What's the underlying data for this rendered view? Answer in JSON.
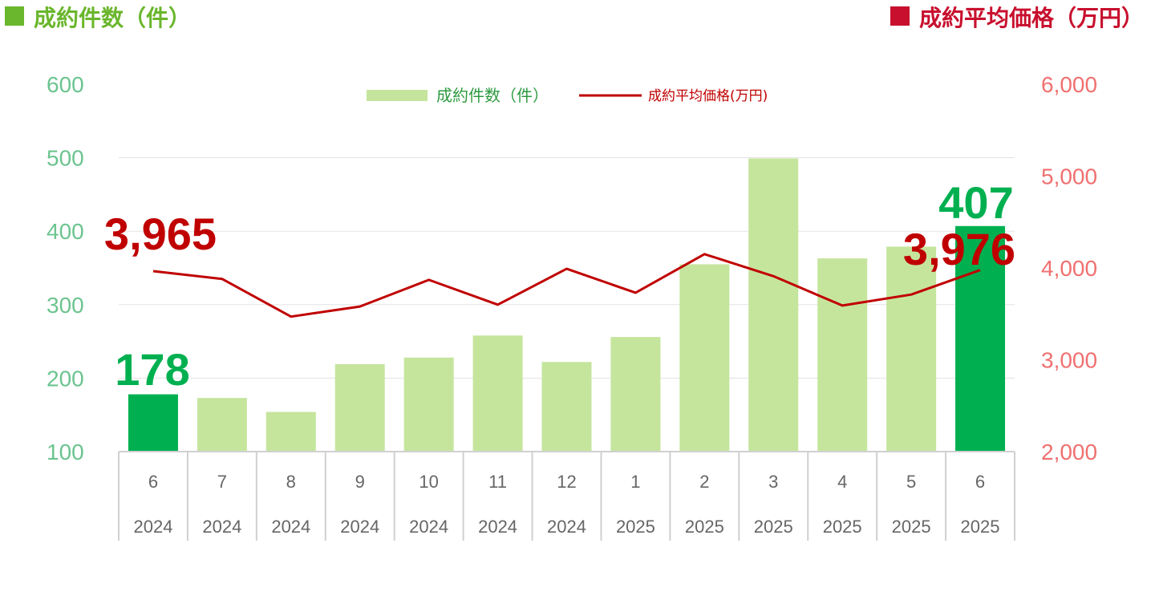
{
  "header": {
    "left_title": "成約件数（件）",
    "right_title": "成約平均価格（万円）",
    "left_color": "#6ab62c",
    "right_color": "#c8102e"
  },
  "chart_data": {
    "type": "bar+line",
    "categories": [
      {
        "month": "6",
        "year": "2024"
      },
      {
        "month": "7",
        "year": "2024"
      },
      {
        "month": "8",
        "year": "2024"
      },
      {
        "month": "9",
        "year": "2024"
      },
      {
        "month": "10",
        "year": "2024"
      },
      {
        "month": "11",
        "year": "2024"
      },
      {
        "month": "12",
        "year": "2024"
      },
      {
        "month": "1",
        "year": "2025"
      },
      {
        "month": "2",
        "year": "2025"
      },
      {
        "month": "3",
        "year": "2025"
      },
      {
        "month": "4",
        "year": "2025"
      },
      {
        "month": "5",
        "year": "2025"
      },
      {
        "month": "6",
        "year": "2025"
      }
    ],
    "series": [
      {
        "name": "成約件数（件）",
        "type": "bar",
        "axis": "left",
        "values": [
          178,
          173,
          154,
          219,
          228,
          258,
          222,
          256,
          355,
          499,
          363,
          379,
          407
        ],
        "color": "#c5e59d",
        "highlight_color": "#00b050",
        "highlight_indices": [
          0,
          12
        ]
      },
      {
        "name": "成約平均価格(万円)",
        "type": "line",
        "axis": "right",
        "values": [
          3965,
          3880,
          3470,
          3580,
          3870,
          3600,
          3990,
          3730,
          4150,
          3910,
          3590,
          3710,
          3976
        ],
        "color": "#c00000"
      }
    ],
    "left_axis": {
      "min": 100,
      "max": 600,
      "ticks": [
        "100",
        "200",
        "300",
        "400",
        "500",
        "600"
      ]
    },
    "right_axis": {
      "min": 2000,
      "max": 6000,
      "ticks": [
        "2,000",
        "3,000",
        "4,000",
        "5,000",
        "6,000"
      ]
    },
    "grid": true,
    "legend_placement": "top-center",
    "callouts": {
      "first_count": "178",
      "last_count": "407",
      "first_price": "3,965",
      "last_price": "3,976"
    }
  }
}
